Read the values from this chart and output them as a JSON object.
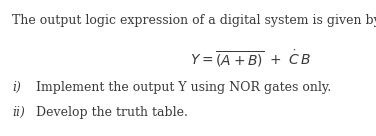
{
  "bg_color": "#ffffff",
  "line1": "The output logic expression of a digital system is given by",
  "line1_fontsize": 9.0,
  "formula_fontsize": 10.0,
  "item_fontsize": 9.0,
  "item_i_label": "i)",
  "item_i_text": "Implement the output Y using NOR gates only.",
  "item_ii_label": "ii)",
  "item_ii_text": "Develop the truth table.",
  "text_color": "#3a3a3a"
}
